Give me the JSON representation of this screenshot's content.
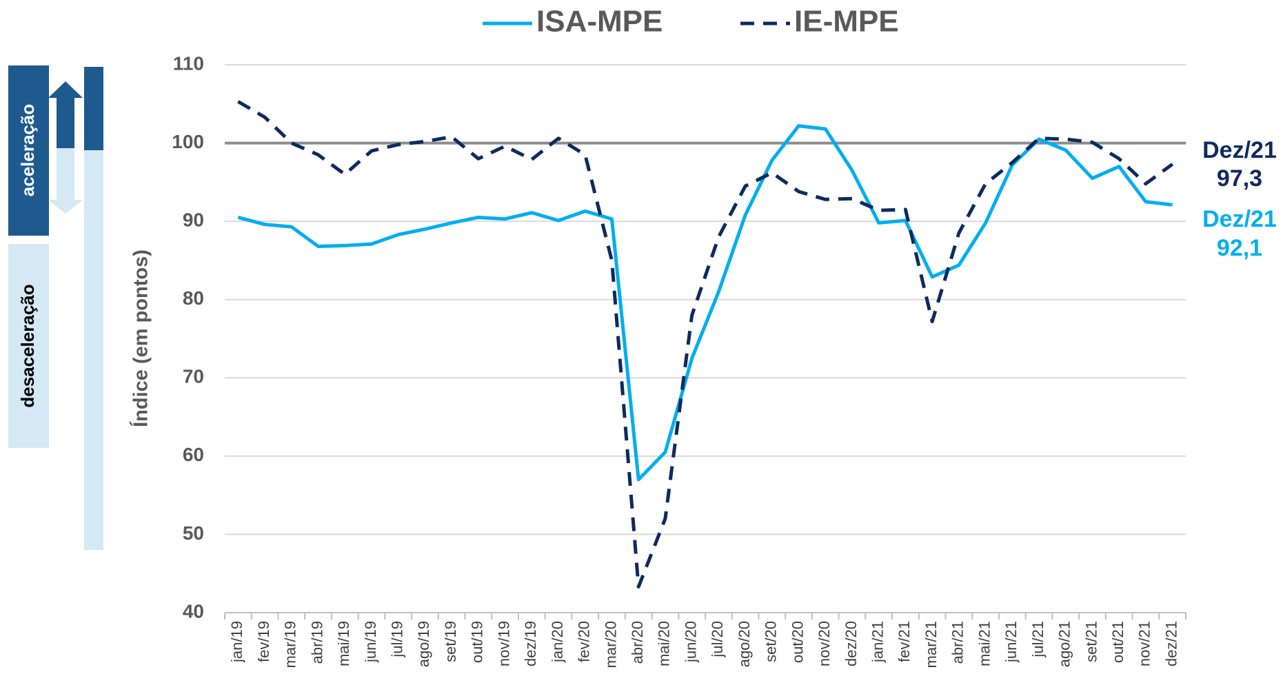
{
  "chart_data": {
    "type": "line",
    "y_label": "Índice (em pontos)",
    "side_labels": [
      "aceleração",
      "desaceleração"
    ],
    "categories": [
      "jan/19",
      "fev/19",
      "mar/19",
      "abr/19",
      "mai/19",
      "jun/19",
      "jul/19",
      "ago/19",
      "set/19",
      "out/19",
      "nov/19",
      "dez/19",
      "jan/20",
      "fev/20",
      "mar/20",
      "abr/20",
      "mai/20",
      "jun/20",
      "jul/20",
      "ago/20",
      "set/20",
      "out/20",
      "nov/20",
      "dez/20",
      "jan/21",
      "fev/21",
      "mar/21",
      "abr/21",
      "mai/21",
      "jun/21",
      "jul/21",
      "ago/21",
      "set/21",
      "out/21",
      "nov/21",
      "dez/21"
    ],
    "series": [
      {
        "name": "ISA-MPE",
        "color": "#00aeef",
        "dashed": false,
        "end_label": "Dez/21",
        "value_label": "92,1",
        "values": [
          90.5,
          89.6,
          89.3,
          86.8,
          86.9,
          87.1,
          88.3,
          89.0,
          89.8,
          90.5,
          90.3,
          91.1,
          90.1,
          91.3,
          90.3,
          57.0,
          60.5,
          72.5,
          81.0,
          90.8,
          97.8,
          102.2,
          101.8,
          96.5,
          89.8,
          90.1,
          82.9,
          84.4,
          89.8,
          97.2,
          100.5,
          99.1,
          95.5,
          97.0,
          92.5,
          92.1
        ]
      },
      {
        "name": "IE-MPE",
        "color": "#0d2b5e",
        "dashed": true,
        "end_label": "Dez/21",
        "value_label": "97,3",
        "values": [
          105.3,
          103.3,
          100.0,
          98.5,
          96.0,
          99.0,
          99.8,
          100.2,
          100.8,
          98.0,
          99.6,
          97.9,
          100.6,
          98.5,
          85.0,
          43.3,
          52.0,
          78.0,
          88.0,
          94.5,
          96.2,
          93.8,
          92.8,
          92.9,
          91.4,
          91.5,
          77.2,
          88.5,
          94.8,
          97.5,
          100.6,
          100.5,
          100.1,
          98.0,
          94.8,
          97.3
        ]
      }
    ],
    "reference_line": 100,
    "ylim": [
      40,
      110
    ],
    "yticks": [
      40,
      50,
      60,
      70,
      80,
      90,
      100,
      110
    ],
    "grid": true
  }
}
